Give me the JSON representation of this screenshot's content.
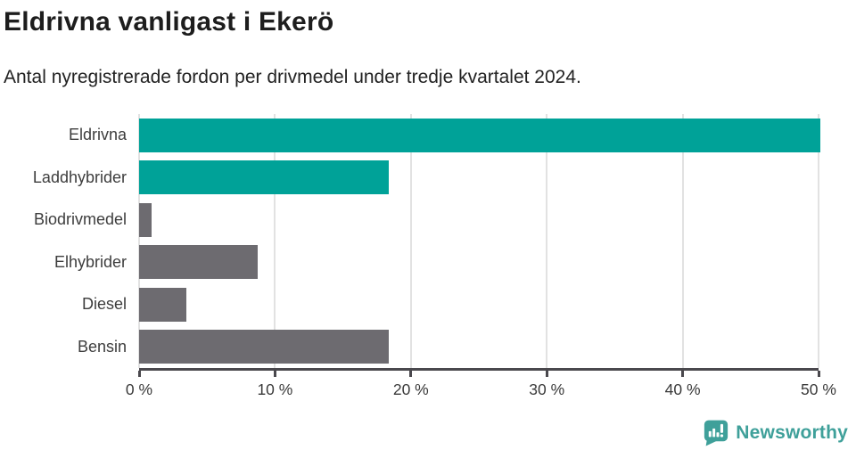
{
  "header": {
    "title": "Eldrivna vanligast i Ekerö",
    "subtitle": "Antal nyregistrerade fordon per drivmedel under tredje kvartalet 2024."
  },
  "chart_data": {
    "type": "bar",
    "orientation": "horizontal",
    "title": "Eldrivna vanligast i Ekerö",
    "subtitle": "Antal nyregistrerade fordon per drivmedel under tredje kvartalet 2024.",
    "categories": [
      "Eldrivna",
      "Laddhybrider",
      "Biodrivmedel",
      "Elhybrider",
      "Diesel",
      "Bensin"
    ],
    "values": [
      50.1,
      18.4,
      0.9,
      8.7,
      3.5,
      18.4
    ],
    "unit": "%",
    "xlabel": "",
    "ylabel": "",
    "xlim": [
      0,
      50
    ],
    "x_ticks": [
      "0 %",
      "10 %",
      "20 %",
      "30 %",
      "40 %",
      "50 %"
    ],
    "x_tick_values": [
      0,
      10,
      20,
      30,
      40,
      50
    ],
    "grid": "vertical-gridlines-on",
    "legend": "none",
    "bar_colors": [
      "#00a298",
      "#00a298",
      "#6d6b70",
      "#6d6b70",
      "#6d6b70",
      "#6d6b70"
    ],
    "colors": {
      "highlight_teal": "#00a298",
      "neutral_gray": "#6d6b70",
      "gridline": "#e2e2e2",
      "axis": "#4a484d"
    }
  },
  "footer": {
    "brand": "Newsworthy",
    "brand_color": "#3fa09a",
    "brand_icon": "bar-chart-speech-bubble-icon"
  }
}
